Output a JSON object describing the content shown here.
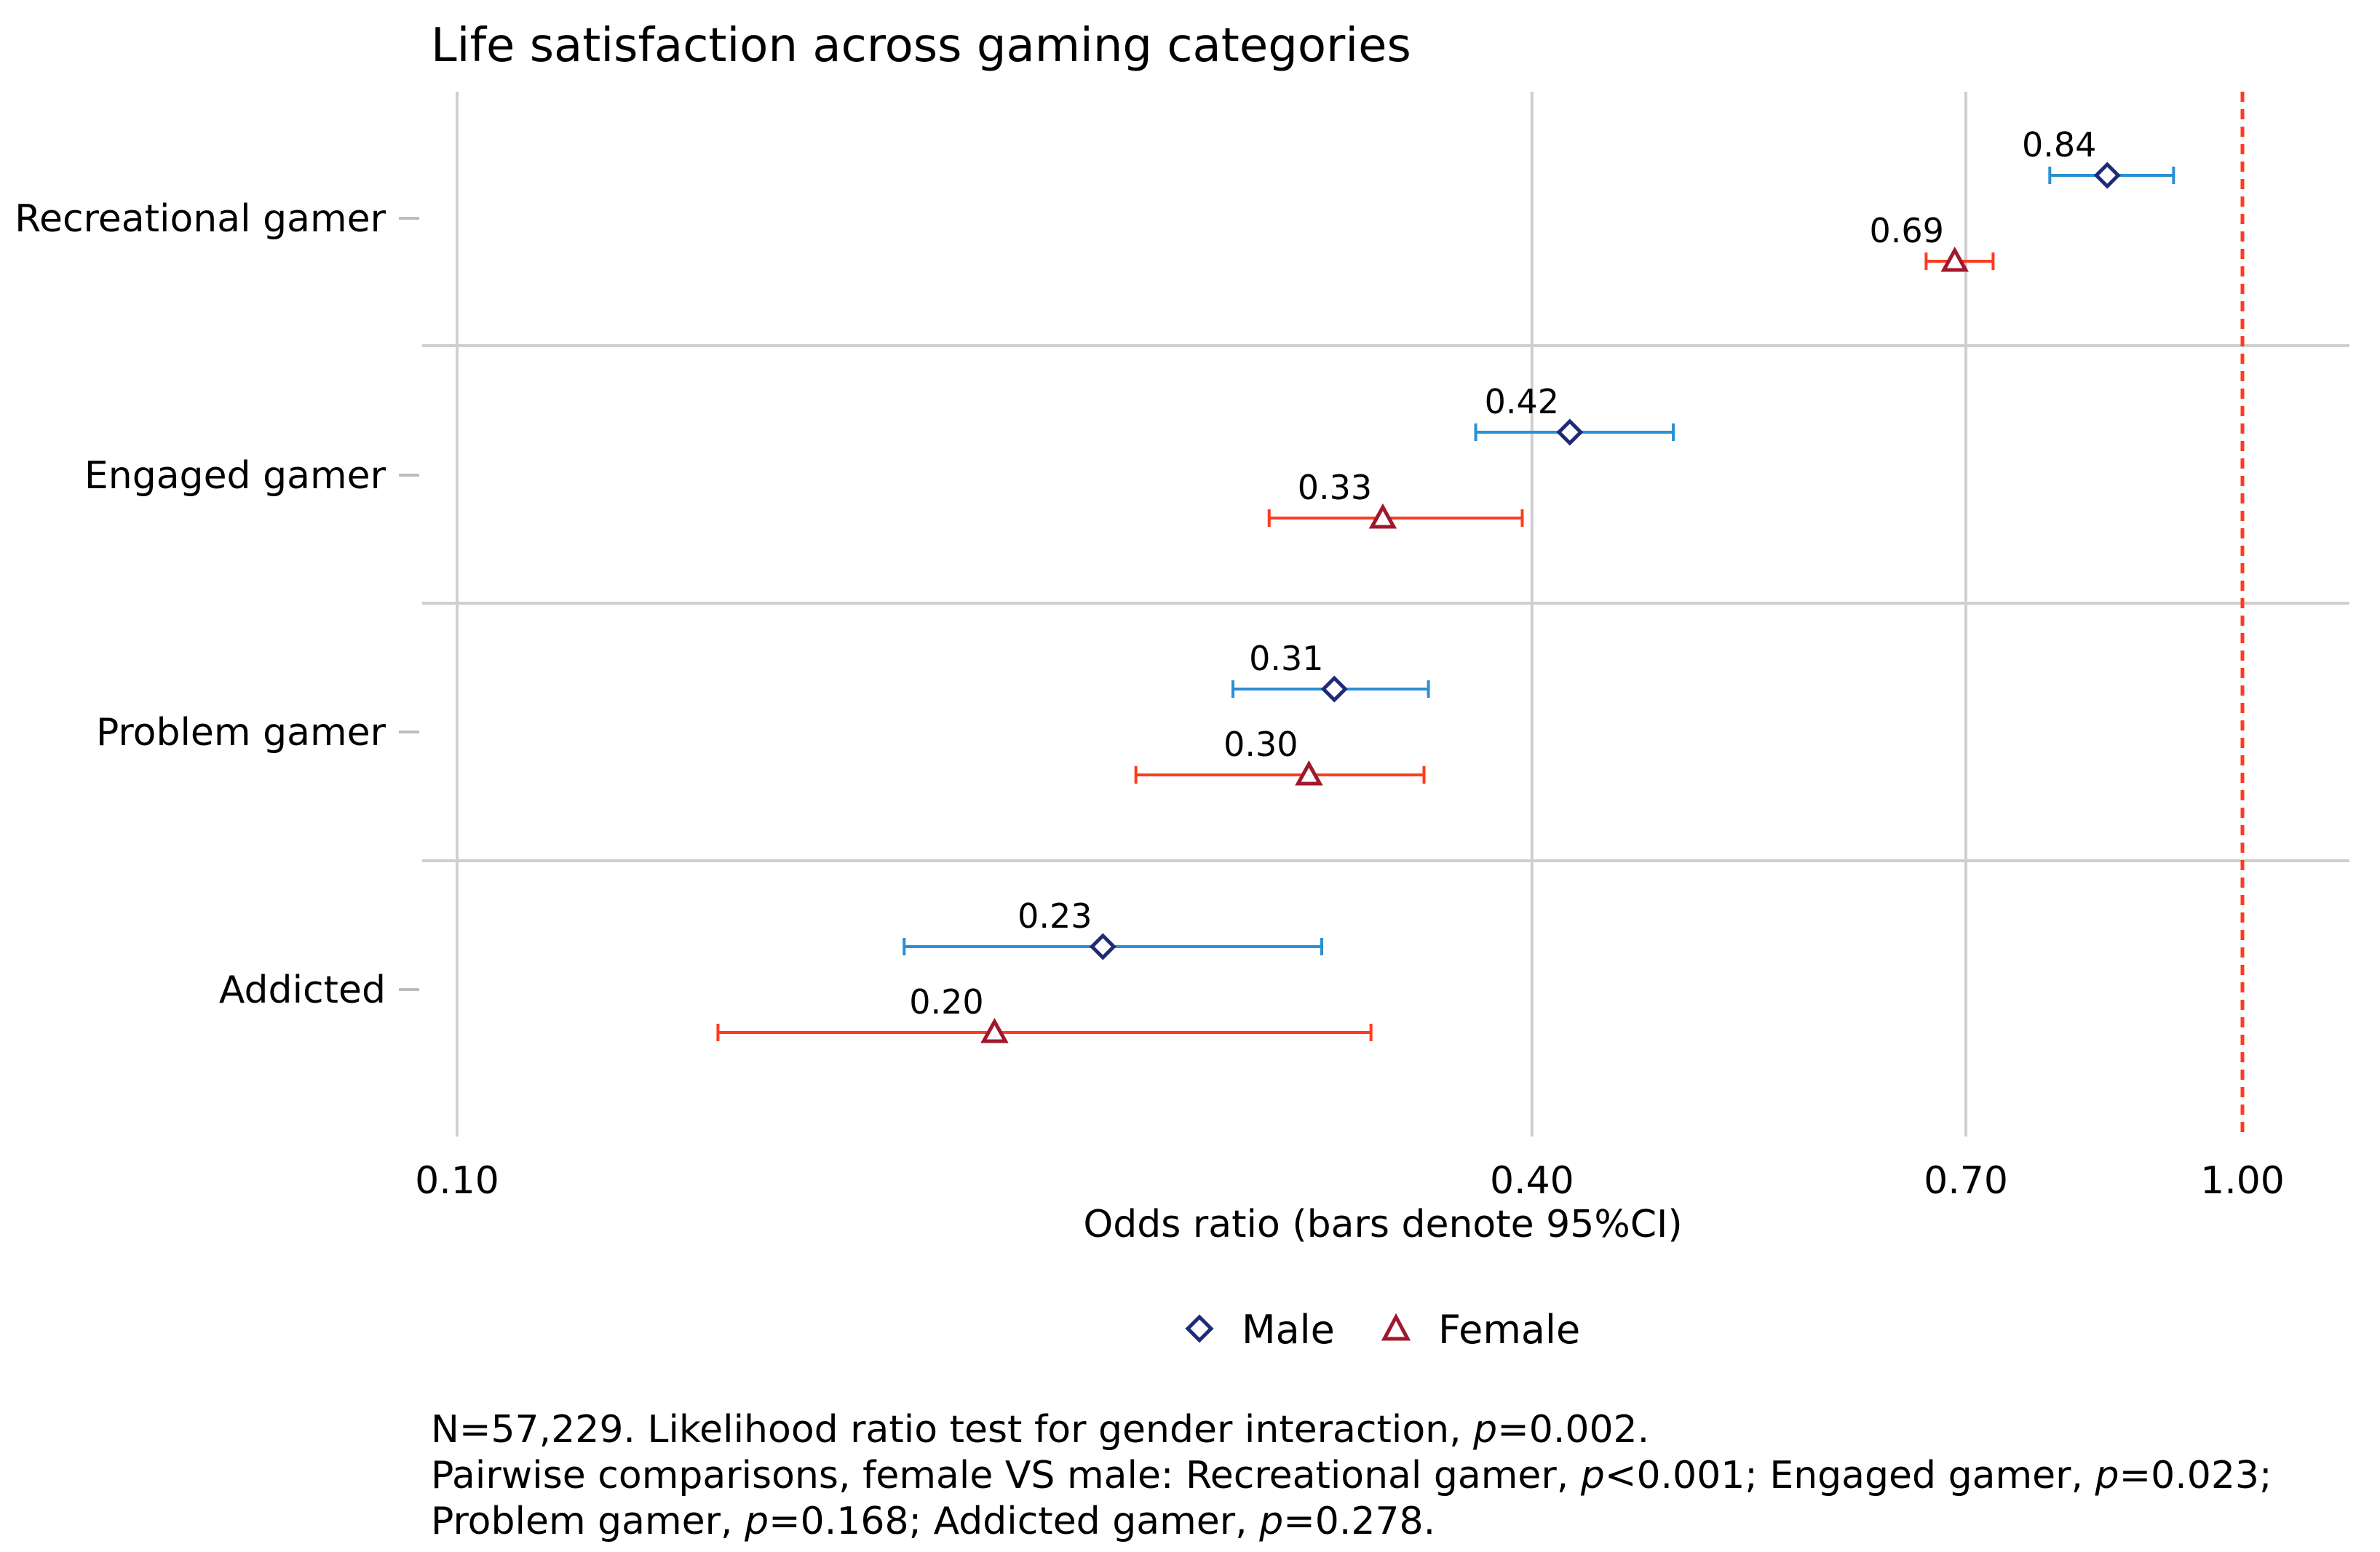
{
  "chart_data": {
    "type": "forest-plot",
    "title": "Life satisfaction across gaming categories",
    "xlabel": "Odds ratio (bars denote 95%CI)",
    "x_scale": "log",
    "xlim": [
      0.1,
      1.2
    ],
    "x_ticks": [
      {
        "value": 0.1,
        "label": "0.10"
      },
      {
        "value": 0.4,
        "label": "0.40"
      },
      {
        "value": 0.7,
        "label": "0.70"
      },
      {
        "value": 1.0,
        "label": "1.00"
      }
    ],
    "reference_line": {
      "value": 1.0,
      "color": "#ff3b1f"
    },
    "categories": [
      "Recreational gamer",
      "Engaged gamer",
      "Problem gamer",
      "Addicted"
    ],
    "series": [
      {
        "name": "Male",
        "marker": "diamond",
        "marker_color": "#1f2a7a",
        "bar_color": "#2a8fd4",
        "estimates": [
          0.84,
          0.42,
          0.31,
          0.23
        ],
        "labels": [
          "0.84",
          "0.42",
          "0.31",
          "0.23"
        ],
        "ci_lower": [
          0.78,
          0.372,
          0.272,
          0.178
        ],
        "ci_upper": [
          0.915,
          0.48,
          0.35,
          0.305
        ]
      },
      {
        "name": "Female",
        "marker": "triangle",
        "marker_color": "#a0182c",
        "bar_color": "#ff3b1f",
        "estimates": [
          0.69,
          0.33,
          0.3,
          0.2
        ],
        "labels": [
          "0.69",
          "0.33",
          "0.30",
          "0.20"
        ],
        "ci_lower": [
          0.665,
          0.285,
          0.24,
          0.14
        ],
        "ci_upper": [
          0.725,
          0.395,
          0.348,
          0.325
        ]
      }
    ],
    "legend": {
      "position": "bottom-center",
      "entries": [
        "Male",
        "Female"
      ]
    }
  },
  "footnote": {
    "line1": {
      "pre": "N=57,229. Likelihood ratio test for gender interaction, ",
      "p": "p",
      "post": "=0.002."
    },
    "line2": [
      {
        "t": "Pairwise comparisons, female VS male: Recreational gamer, "
      },
      {
        "t": "p",
        "i": true
      },
      {
        "t": "<0.001; Engaged gamer, "
      },
      {
        "t": "p",
        "i": true
      },
      {
        "t": "=0.023;"
      }
    ],
    "line3": [
      {
        "t": "Problem gamer, "
      },
      {
        "t": "p",
        "i": true
      },
      {
        "t": "=0.168; Addicted gamer, "
      },
      {
        "t": "p",
        "i": true
      },
      {
        "t": "=0.278."
      }
    ]
  }
}
